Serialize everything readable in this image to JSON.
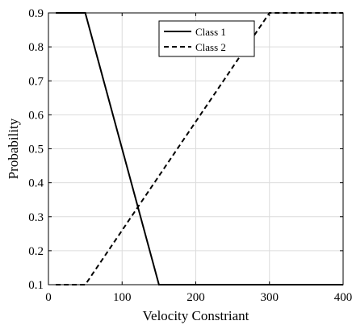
{
  "chart_data": {
    "type": "line",
    "title": "",
    "xlabel": "Velocity Constriant",
    "ylabel": "Probability",
    "xlim": [
      0,
      400
    ],
    "ylim": [
      0.1,
      0.9
    ],
    "x_ticks": [
      0,
      100,
      200,
      300,
      400
    ],
    "y_ticks": [
      0.1,
      0.2,
      0.3,
      0.4,
      0.5,
      0.6,
      0.7,
      0.8,
      0.9
    ],
    "x_tick_labels": [
      "0",
      "100",
      "200",
      "300",
      "400"
    ],
    "y_tick_labels": [
      "0.1",
      "0.2",
      "0.3",
      "0.4",
      "0.5",
      "0.6",
      "0.7",
      "0.8",
      "0.9"
    ],
    "grid": true,
    "legend_position": "top-center",
    "series": [
      {
        "name": "Class 1",
        "style": "solid",
        "color": "#000000",
        "x": [
          10,
          50,
          150,
          400
        ],
        "y": [
          0.9,
          0.9,
          0.1,
          0.1
        ]
      },
      {
        "name": "Class 2",
        "style": "dashed",
        "color": "#000000",
        "x": [
          10,
          50,
          300,
          400
        ],
        "y": [
          0.1,
          0.1,
          0.9,
          0.9
        ]
      }
    ]
  }
}
